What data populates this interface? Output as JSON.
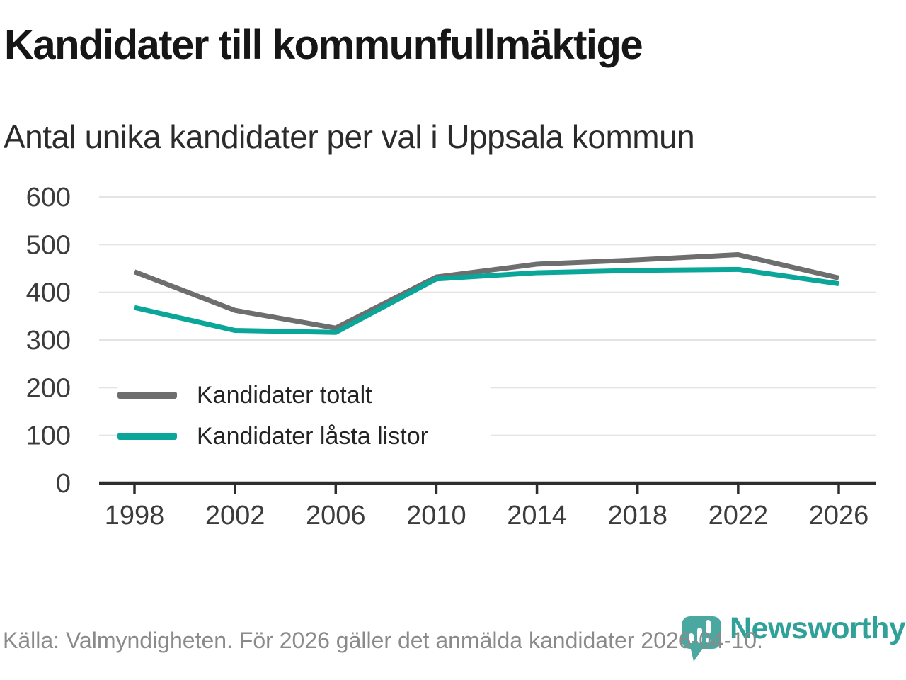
{
  "header": {
    "title": "Kandidater till kommunfullmäktige",
    "subtitle": "Antal unika kandidater per val i Uppsala kommun"
  },
  "chart_data": {
    "type": "line",
    "x": [
      1998,
      2002,
      2006,
      2010,
      2014,
      2018,
      2022,
      2026
    ],
    "series": [
      {
        "name": "Kandidater totalt",
        "color": "#6e6e6e",
        "values": [
          443,
          362,
          325,
          432,
          459,
          468,
          479,
          430
        ]
      },
      {
        "name": "Kandidater låsta listor",
        "color": "#0ba69a",
        "values": [
          368,
          320,
          316,
          428,
          441,
          446,
          448,
          418
        ]
      }
    ],
    "title": "Kandidater till kommunfullmäktige",
    "subtitle": "Antal unika kandidater per val i Uppsala kommun",
    "xlabel": "",
    "ylabel": "",
    "ylim": [
      0,
      600
    ],
    "yticks": [
      0,
      100,
      200,
      300,
      400,
      500,
      600
    ],
    "grid": true,
    "legend_position": "inside-bottom-left"
  },
  "footer": {
    "source": "Källa: Valmyndigheten. För 2026 gäller det anmälda kandidater 2026-04-10.",
    "brand": "Newsworthy"
  },
  "colors": {
    "grid": "#e4e4e4",
    "axis": "#2d2d2d",
    "tick_label": "#3c3c3c",
    "footer_text": "#8a8a8a",
    "brand_teal": "#2fa198",
    "logo_pin": "#4ba8a0"
  }
}
